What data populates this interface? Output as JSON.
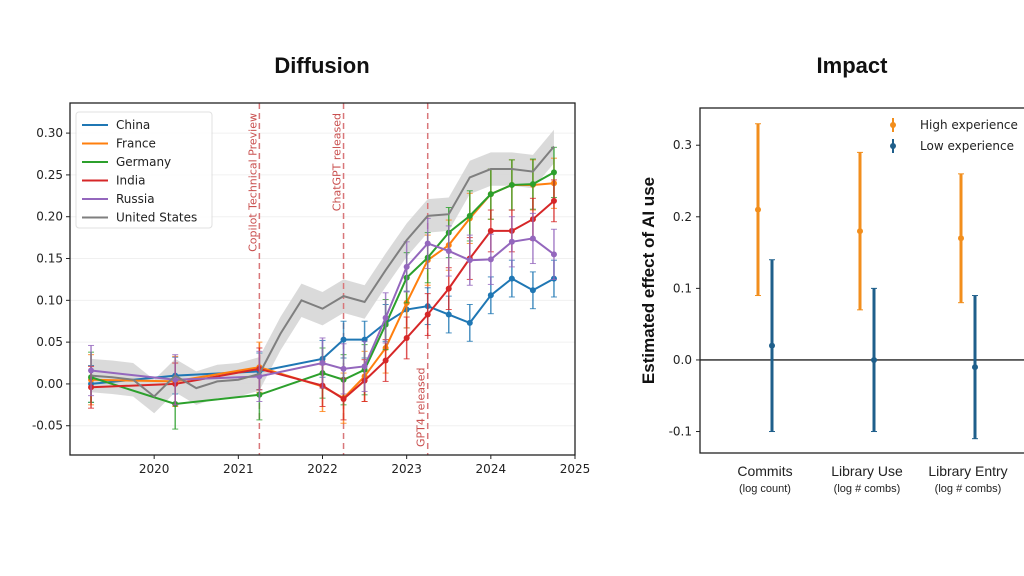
{
  "chart_data": [
    {
      "type": "line",
      "title": "Diffusion",
      "xlabel": "",
      "ylabel": "",
      "xlim": [
        2019.0,
        2025.0
      ],
      "ylim": [
        -0.085,
        0.336
      ],
      "xticks": [
        "2020",
        "2021",
        "2022",
        "2023",
        "2024",
        "2025"
      ],
      "yticks": [
        "-0.05",
        "0.00",
        "0.05",
        "0.10",
        "0.15",
        "0.20",
        "0.25",
        "0.30"
      ],
      "grid": true,
      "legend": "top-left",
      "x": [
        2019.25,
        2020.25,
        2021.25,
        2022.0,
        2022.25,
        2022.5,
        2022.75,
        2023.0,
        2023.25,
        2023.5,
        2023.75,
        2024.0,
        2024.25,
        2024.5,
        2024.75
      ],
      "series": [
        {
          "name": "China",
          "color": "#1f77b4",
          "error": 0.022,
          "values": [
            0.0,
            0.01,
            0.015,
            0.03,
            0.053,
            0.053,
            0.073,
            0.089,
            0.093,
            0.083,
            0.073,
            0.106,
            0.126,
            0.112,
            0.126
          ]
        },
        {
          "name": "France",
          "color": "#ff7f0e",
          "error": 0.03,
          "values": [
            0.005,
            0.003,
            0.02,
            -0.003,
            -0.017,
            0.009,
            0.043,
            0.097,
            0.148,
            0.166,
            0.198,
            0.227,
            0.238,
            0.238,
            0.24
          ]
        },
        {
          "name": "Germany",
          "color": "#2ca02c",
          "error": 0.03,
          "values": [
            0.008,
            -0.024,
            -0.013,
            0.013,
            0.005,
            0.017,
            0.071,
            0.127,
            0.151,
            0.181,
            0.201,
            0.227,
            0.238,
            0.239,
            0.253
          ]
        },
        {
          "name": "India",
          "color": "#d62728",
          "error": 0.025,
          "values": [
            -0.004,
            0.0,
            0.018,
            -0.002,
            -0.018,
            0.004,
            0.028,
            0.055,
            0.083,
            0.114,
            0.15,
            0.183,
            0.183,
            0.197,
            0.219
          ]
        },
        {
          "name": "Russia",
          "color": "#9467bd",
          "error": 0.03,
          "values": [
            0.016,
            0.005,
            0.009,
            0.025,
            0.018,
            0.021,
            0.079,
            0.14,
            0.168,
            0.159,
            0.148,
            0.149,
            0.17,
            0.174,
            0.155
          ]
        },
        {
          "name": "United States",
          "color": "#7f7f7f",
          "band": 0.02,
          "x": [
            2019.25,
            2019.5,
            2019.75,
            2020.0,
            2020.25,
            2020.5,
            2020.75,
            2021.0,
            2021.25,
            2021.5,
            2021.75,
            2022.0,
            2022.25,
            2022.5,
            2022.75,
            2023.0,
            2023.25,
            2023.5,
            2023.75,
            2024.0,
            2024.25,
            2024.5,
            2024.75
          ],
          "values": [
            0.01,
            0.008,
            0.005,
            -0.015,
            0.01,
            -0.005,
            0.003,
            0.005,
            0.012,
            0.06,
            0.1,
            0.09,
            0.105,
            0.098,
            0.136,
            0.172,
            0.201,
            0.203,
            0.247,
            0.257,
            0.257,
            0.254,
            0.284
          ]
        }
      ],
      "annotations": [
        {
          "x": 2021.25,
          "label": "Copilot Technical Preview"
        },
        {
          "x": 2022.25,
          "label": "ChatGPT released"
        },
        {
          "x": 2023.25,
          "label": "GPT4 released"
        }
      ],
      "annotation_color": "#d9777a"
    },
    {
      "type": "errorbar",
      "title": "Impact",
      "ylabel": "Estimated effect of AI use",
      "ylim": [
        -0.13,
        0.352
      ],
      "yticks": [
        "-0.1",
        "0.0",
        "0.1",
        "0.2",
        "0.3"
      ],
      "legend": "top-right",
      "categories": [
        {
          "label": "Commits",
          "sublabel": "(log count)"
        },
        {
          "label": "Library Use",
          "sublabel": "(log # combs)"
        },
        {
          "label": "Library Entry",
          "sublabel": "(log # combs)"
        }
      ],
      "series": [
        {
          "name": "High experience",
          "color": "#f28e1c",
          "values": [
            0.21,
            0.18,
            0.17
          ],
          "lower": [
            0.09,
            0.07,
            0.08
          ],
          "upper": [
            0.33,
            0.29,
            0.26
          ]
        },
        {
          "name": "Low experience",
          "color": "#1f5f8b",
          "values": [
            0.02,
            0.0,
            -0.01
          ],
          "lower": [
            -0.1,
            -0.1,
            -0.11
          ],
          "upper": [
            0.14,
            0.1,
            0.09
          ]
        }
      ]
    }
  ]
}
